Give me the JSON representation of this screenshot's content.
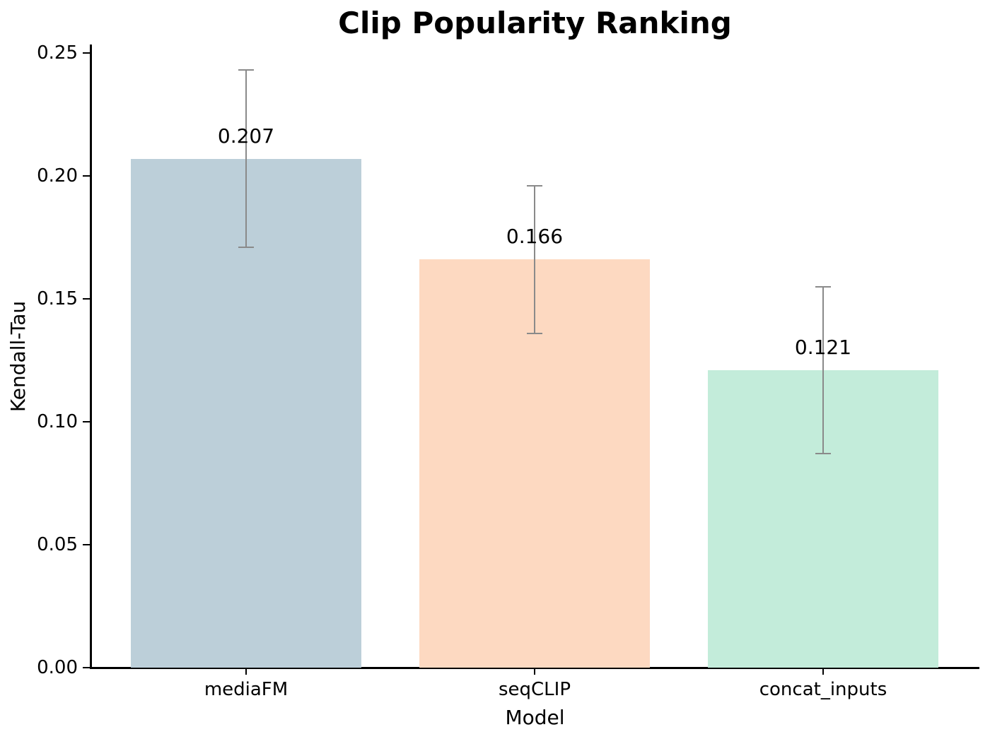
{
  "chart_data": {
    "type": "bar",
    "title": "Clip Popularity Ranking",
    "xlabel": "Model",
    "ylabel": "Kendall-Tau",
    "categories": [
      "mediaFM",
      "seqCLIP",
      "concat_inputs"
    ],
    "values": [
      0.207,
      0.166,
      0.121
    ],
    "value_labels": [
      "0.207",
      "0.166",
      "0.121"
    ],
    "errors": [
      0.036,
      0.03,
      0.034
    ],
    "bar_colors": [
      "#bccfd9",
      "#fdd9c1",
      "#c3ecda"
    ],
    "error_bar_color": "#8a8a8a",
    "ylim": [
      0,
      0.25
    ],
    "yticks": [
      "0.00",
      "0.05",
      "0.10",
      "0.15",
      "0.20",
      "0.25"
    ],
    "grid": false,
    "legend": null
  }
}
